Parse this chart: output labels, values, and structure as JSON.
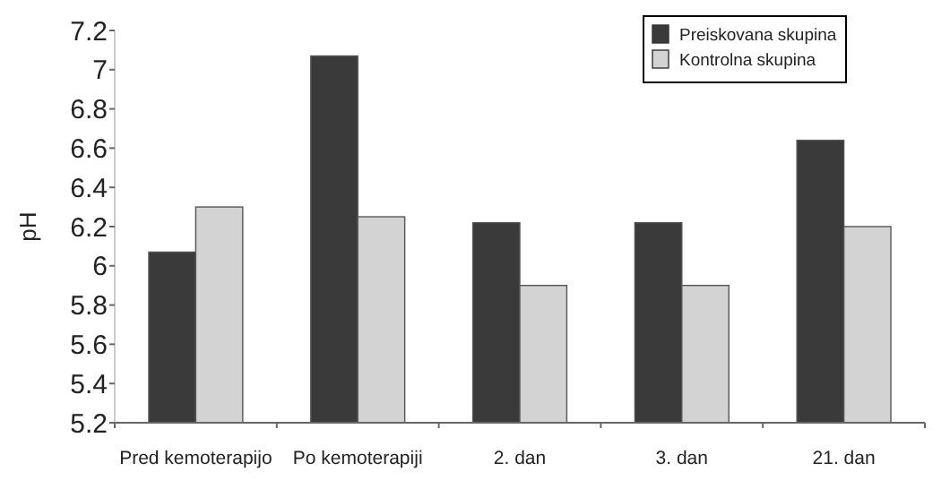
{
  "chart_data": {
    "type": "bar",
    "ylabel": "pH",
    "categories": [
      "Pred kemoterapijo",
      "Po kemoterapiji",
      "2. dan",
      "3. dan",
      "21. dan"
    ],
    "series": [
      {
        "name": "Preiskovana skupina",
        "color": "#3a3a3a",
        "values": [
          6.07,
          7.07,
          6.22,
          6.22,
          6.64
        ]
      },
      {
        "name": "Kontrolna skupina",
        "color": "#d3d3d3",
        "values": [
          6.3,
          6.25,
          5.9,
          5.9,
          6.2
        ]
      }
    ],
    "ylim": [
      5.2,
      7.2
    ],
    "yticks": [
      5.2,
      5.4,
      5.6,
      5.8,
      6,
      6.2,
      6.4,
      6.6,
      6.8,
      7,
      7.2
    ],
    "grid": false,
    "legend": "top right"
  }
}
